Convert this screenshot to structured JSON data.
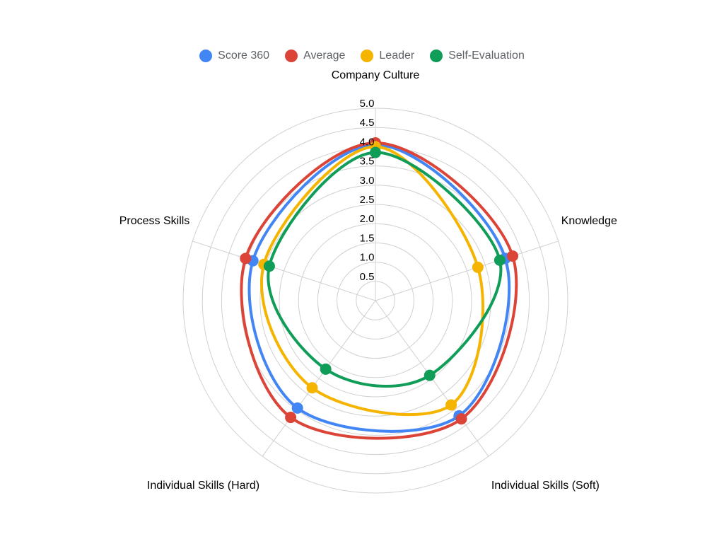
{
  "chart_data": {
    "type": "radar",
    "axes": [
      "Company Culture",
      "Knowledge",
      "Individual Skills (Soft)",
      "Individual Skills (Hard)",
      "Process Skills"
    ],
    "rlim": [
      0,
      5
    ],
    "ticks": [
      "0.5",
      "1.0",
      "1.5",
      "2.0",
      "2.5",
      "3.0",
      "3.5",
      "4.0",
      "4.5",
      "5.0"
    ],
    "grid": true,
    "legend_position": "top",
    "series": [
      {
        "name": "Score 360",
        "color": "#4285F4",
        "values": [
          4.05,
          3.55,
          3.7,
          3.45,
          3.35
        ]
      },
      {
        "name": "Average",
        "color": "#DB4437",
        "values": [
          4.1,
          3.75,
          3.8,
          3.75,
          3.55
        ]
      },
      {
        "name": "Leader",
        "color": "#F4B400",
        "values": [
          4.0,
          2.8,
          3.35,
          2.8,
          3.05
        ]
      },
      {
        "name": "Self-Evaluation",
        "color": "#0F9D58",
        "values": [
          3.85,
          3.4,
          2.4,
          2.2,
          2.9
        ]
      }
    ]
  }
}
